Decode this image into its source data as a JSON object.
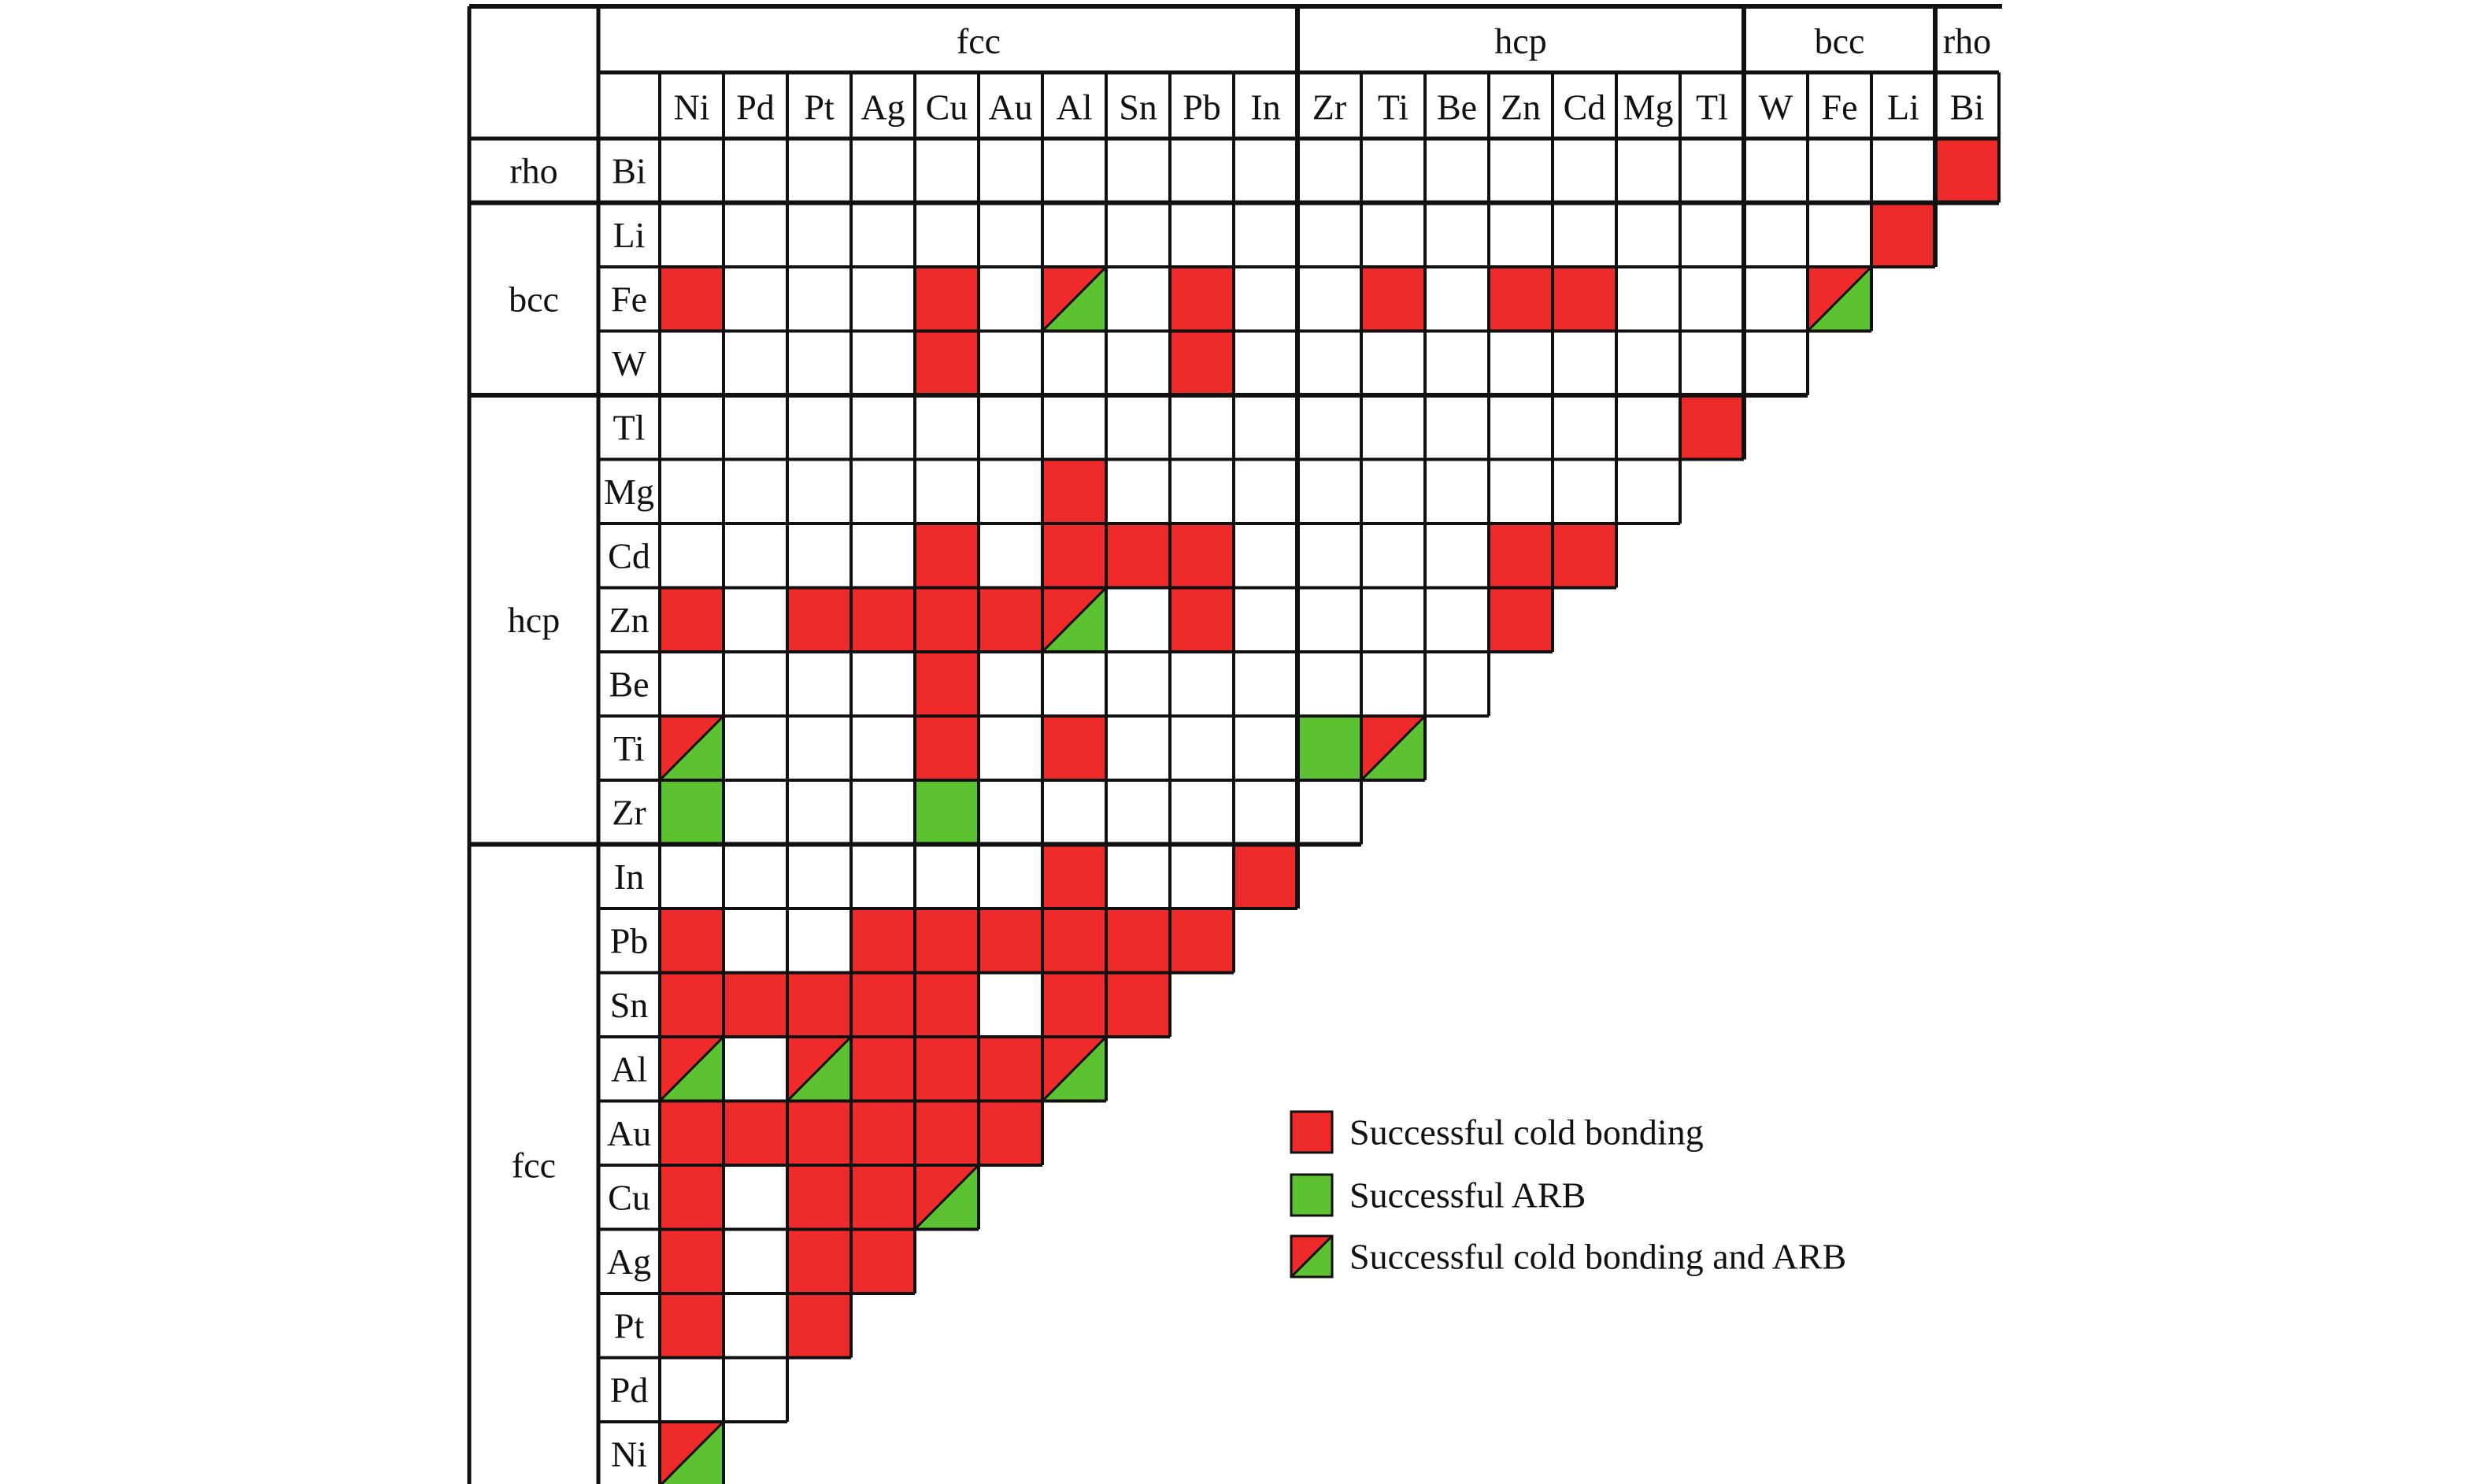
{
  "columns": [
    "Ni",
    "Pd",
    "Pt",
    "Ag",
    "Cu",
    "Au",
    "Al",
    "Sn",
    "Pb",
    "In",
    "Zr",
    "Ti",
    "Be",
    "Zn",
    "Cd",
    "Mg",
    "Tl",
    "W",
    "Fe",
    "Li",
    "Bi"
  ],
  "rows": [
    "Bi",
    "Li",
    "Fe",
    "W",
    "Tl",
    "Mg",
    "Cd",
    "Zn",
    "Be",
    "Ti",
    "Zr",
    "In",
    "Pb",
    "Sn",
    "Al",
    "Au",
    "Cu",
    "Ag",
    "Pt",
    "Pd",
    "Ni"
  ],
  "column_groups": [
    {
      "label": "fcc",
      "start": 0,
      "end": 9
    },
    {
      "label": "hcp",
      "start": 10,
      "end": 16
    },
    {
      "label": "bcc",
      "start": 17,
      "end": 19
    },
    {
      "label": "rho",
      "start": 20,
      "end": 20
    }
  ],
  "row_groups": [
    {
      "label": "rho",
      "start": 0,
      "end": 0
    },
    {
      "label": "bcc",
      "start": 1,
      "end": 3
    },
    {
      "label": "hcp",
      "start": 4,
      "end": 10
    },
    {
      "label": "fcc",
      "start": 11,
      "end": 20
    }
  ],
  "cells": [
    {
      "row": "Bi",
      "col": "Bi",
      "status": "cold"
    },
    {
      "row": "Li",
      "col": "Li",
      "status": "cold"
    },
    {
      "row": "Fe",
      "col": "Ni",
      "status": "cold"
    },
    {
      "row": "Fe",
      "col": "Cu",
      "status": "cold"
    },
    {
      "row": "Fe",
      "col": "Al",
      "status": "both"
    },
    {
      "row": "Fe",
      "col": "Pb",
      "status": "cold"
    },
    {
      "row": "Fe",
      "col": "Ti",
      "status": "cold"
    },
    {
      "row": "Fe",
      "col": "Zn",
      "status": "cold"
    },
    {
      "row": "Fe",
      "col": "Cd",
      "status": "cold"
    },
    {
      "row": "Fe",
      "col": "Fe",
      "status": "both"
    },
    {
      "row": "W",
      "col": "Cu",
      "status": "cold"
    },
    {
      "row": "W",
      "col": "Pb",
      "status": "cold"
    },
    {
      "row": "Tl",
      "col": "Tl",
      "status": "cold"
    },
    {
      "row": "Mg",
      "col": "Al",
      "status": "cold"
    },
    {
      "row": "Cd",
      "col": "Cu",
      "status": "cold"
    },
    {
      "row": "Cd",
      "col": "Al",
      "status": "cold"
    },
    {
      "row": "Cd",
      "col": "Sn",
      "status": "cold"
    },
    {
      "row": "Cd",
      "col": "Pb",
      "status": "cold"
    },
    {
      "row": "Cd",
      "col": "Zn",
      "status": "cold"
    },
    {
      "row": "Cd",
      "col": "Cd",
      "status": "cold"
    },
    {
      "row": "Zn",
      "col": "Ni",
      "status": "cold"
    },
    {
      "row": "Zn",
      "col": "Pt",
      "status": "cold"
    },
    {
      "row": "Zn",
      "col": "Ag",
      "status": "cold"
    },
    {
      "row": "Zn",
      "col": "Cu",
      "status": "cold"
    },
    {
      "row": "Zn",
      "col": "Au",
      "status": "cold"
    },
    {
      "row": "Zn",
      "col": "Al",
      "status": "both"
    },
    {
      "row": "Zn",
      "col": "Pb",
      "status": "cold"
    },
    {
      "row": "Zn",
      "col": "Zn",
      "status": "cold"
    },
    {
      "row": "Be",
      "col": "Cu",
      "status": "cold"
    },
    {
      "row": "Ti",
      "col": "Ni",
      "status": "both"
    },
    {
      "row": "Ti",
      "col": "Cu",
      "status": "cold"
    },
    {
      "row": "Ti",
      "col": "Al",
      "status": "cold"
    },
    {
      "row": "Ti",
      "col": "Zr",
      "status": "arb"
    },
    {
      "row": "Ti",
      "col": "Ti",
      "status": "both"
    },
    {
      "row": "Zr",
      "col": "Ni",
      "status": "arb"
    },
    {
      "row": "Zr",
      "col": "Cu",
      "status": "arb"
    },
    {
      "row": "In",
      "col": "Al",
      "status": "cold"
    },
    {
      "row": "In",
      "col": "In",
      "status": "cold"
    },
    {
      "row": "Pb",
      "col": "Ni",
      "status": "cold"
    },
    {
      "row": "Pb",
      "col": "Ag",
      "status": "cold"
    },
    {
      "row": "Pb",
      "col": "Cu",
      "status": "cold"
    },
    {
      "row": "Pb",
      "col": "Au",
      "status": "cold"
    },
    {
      "row": "Pb",
      "col": "Al",
      "status": "cold"
    },
    {
      "row": "Pb",
      "col": "Sn",
      "status": "cold"
    },
    {
      "row": "Pb",
      "col": "Pb",
      "status": "cold"
    },
    {
      "row": "Sn",
      "col": "Ni",
      "status": "cold"
    },
    {
      "row": "Sn",
      "col": "Pd",
      "status": "cold"
    },
    {
      "row": "Sn",
      "col": "Pt",
      "status": "cold"
    },
    {
      "row": "Sn",
      "col": "Ag",
      "status": "cold"
    },
    {
      "row": "Sn",
      "col": "Cu",
      "status": "cold"
    },
    {
      "row": "Sn",
      "col": "Al",
      "status": "cold"
    },
    {
      "row": "Sn",
      "col": "Sn",
      "status": "cold"
    },
    {
      "row": "Al",
      "col": "Ni",
      "status": "both"
    },
    {
      "row": "Al",
      "col": "Pt",
      "status": "both"
    },
    {
      "row": "Al",
      "col": "Ag",
      "status": "cold"
    },
    {
      "row": "Al",
      "col": "Cu",
      "status": "cold"
    },
    {
      "row": "Al",
      "col": "Au",
      "status": "cold"
    },
    {
      "row": "Al",
      "col": "Al",
      "status": "both"
    },
    {
      "row": "Au",
      "col": "Ni",
      "status": "cold"
    },
    {
      "row": "Au",
      "col": "Pd",
      "status": "cold"
    },
    {
      "row": "Au",
      "col": "Pt",
      "status": "cold"
    },
    {
      "row": "Au",
      "col": "Ag",
      "status": "cold"
    },
    {
      "row": "Au",
      "col": "Cu",
      "status": "cold"
    },
    {
      "row": "Au",
      "col": "Au",
      "status": "cold"
    },
    {
      "row": "Cu",
      "col": "Ni",
      "status": "cold"
    },
    {
      "row": "Cu",
      "col": "Pt",
      "status": "cold"
    },
    {
      "row": "Cu",
      "col": "Ag",
      "status": "cold"
    },
    {
      "row": "Cu",
      "col": "Cu",
      "status": "both"
    },
    {
      "row": "Ag",
      "col": "Ni",
      "status": "cold"
    },
    {
      "row": "Ag",
      "col": "Pt",
      "status": "cold"
    },
    {
      "row": "Ag",
      "col": "Ag",
      "status": "cold"
    },
    {
      "row": "Pt",
      "col": "Ni",
      "status": "cold"
    },
    {
      "row": "Pt",
      "col": "Pt",
      "status": "cold"
    },
    {
      "row": "Ni",
      "col": "Ni",
      "status": "both"
    }
  ],
  "legend": [
    {
      "key": "cold",
      "label": "Successful cold bonding"
    },
    {
      "key": "arb",
      "label": "Successful ARB"
    },
    {
      "key": "both",
      "label": "Successful cold bonding and ARB"
    }
  ],
  "colors": {
    "cold": "#ee2a2a",
    "arb": "#5dc232",
    "empty": "#ffffff",
    "line": "#111111"
  }
}
